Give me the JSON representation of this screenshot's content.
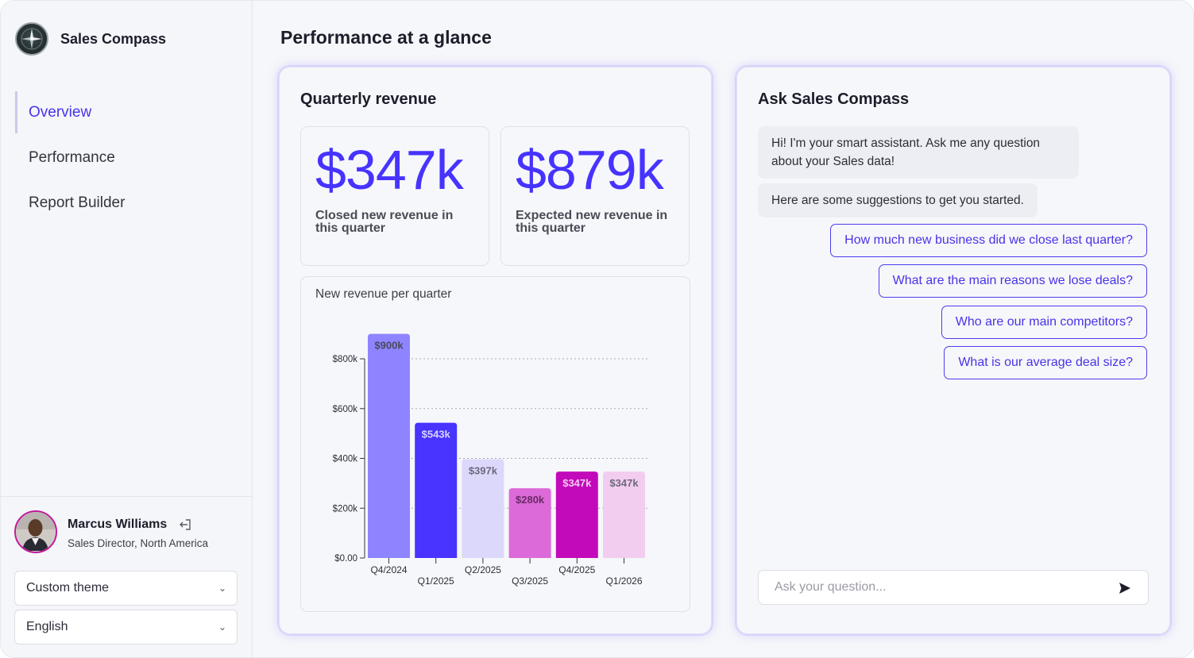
{
  "app": {
    "name": "Sales Compass"
  },
  "nav": {
    "items": [
      {
        "label": "Overview",
        "active": true
      },
      {
        "label": "Performance",
        "active": false
      },
      {
        "label": "Report Builder",
        "active": false
      }
    ]
  },
  "user": {
    "name": "Marcus Williams",
    "role": "Sales Director, North America"
  },
  "selects": {
    "theme": "Custom theme",
    "language": "English"
  },
  "page": {
    "title": "Performance at a glance"
  },
  "revenue": {
    "title": "Quarterly revenue",
    "kpis": [
      {
        "value": "$347k",
        "label": "Closed new revenue in this quarter"
      },
      {
        "value": "$879k",
        "label": "Expected new revenue in this quarter"
      }
    ]
  },
  "chart_data": {
    "type": "bar",
    "title": "New revenue per quarter",
    "categories": [
      "Q4/2024",
      "Q1/2025",
      "Q2/2025",
      "Q3/2025",
      "Q4/2025",
      "Q1/2026"
    ],
    "values": [
      900,
      543,
      397,
      280,
      347,
      347
    ],
    "value_labels": [
      "$900k",
      "$543k",
      "$397k",
      "$280k",
      "$347k",
      "$347k"
    ],
    "bar_colors": [
      "#8e84ff",
      "#4833ff",
      "#dcd8fb",
      "#dc6ad9",
      "#c20aba",
      "#f2cdef"
    ],
    "label_colors": [
      "#4a4a5a",
      "#d8d4ff",
      "#6e6a7e",
      "#6a2a66",
      "#f3c8ef",
      "#6e6a7e"
    ],
    "yticks": [
      0,
      200,
      400,
      600,
      800
    ],
    "ytick_labels": [
      "$0.00",
      "$200k",
      "$400k",
      "$600k",
      "$800k"
    ],
    "ylim": [
      0,
      950
    ],
    "grid": true,
    "xlabel": "",
    "ylabel": ""
  },
  "chat": {
    "title": "Ask Sales Compass",
    "greeting": "Hi! I'm your smart assistant. Ask me any question about your Sales data!",
    "intro": "Here are some suggestions to get you started.",
    "suggestions": [
      "How much new business did we close last quarter?",
      "What are the main reasons we lose deals?",
      "Who are our main competitors?",
      "What is our average deal size?"
    ],
    "input_placeholder": "Ask your question...",
    "input_value": ""
  },
  "colors": {
    "accent": "#4733ff",
    "accent_text": "#4733e8",
    "avatar_ring": "#c2199e"
  },
  "icons": {
    "logo": "compass-logo-icon",
    "logout": "logout-icon",
    "chevron": "chevron-down-icon",
    "send": "send-icon"
  }
}
